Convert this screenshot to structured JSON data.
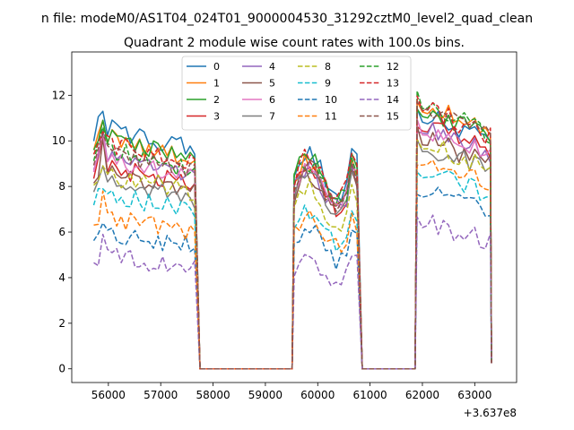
{
  "chart_data": {
    "type": "line",
    "suptitle": "n file: modeM0/AS1T04_024T01_9000004530_31292cztM0_level2_quad_clean",
    "title": "Quadrant 2 module wise count rates with 100.0s bins.",
    "xlabel": "",
    "ylabel": "",
    "x_offset_label": "+3.637e8",
    "xlim": [
      55300,
      63800
    ],
    "ylim": [
      -0.6,
      13.9
    ],
    "xticks": [
      56000,
      57000,
      58000,
      59000,
      60000,
      61000,
      62000,
      63000
    ],
    "xtick_labels": [
      "56000",
      "57000",
      "58000",
      "59000",
      "60000",
      "61000",
      "62000",
      "63000"
    ],
    "yticks": [
      0,
      2,
      4,
      6,
      8,
      10,
      12
    ],
    "ytick_labels": [
      "0",
      "2",
      "4",
      "6",
      "8",
      "10",
      "12"
    ],
    "grid": false,
    "legend_position": "upper-center",
    "legend_columns": 4,
    "gap_start": 57750,
    "segments": [
      [
        55720,
        57650,
        23
      ],
      [
        59550,
        60750,
        13
      ],
      [
        61900,
        63300,
        15
      ]
    ],
    "series": [
      {
        "name": "0",
        "color": "#1f77b4",
        "dash": "solid",
        "levels": [
          10.3,
          9.2,
          10.5
        ],
        "peak": 11.3
      },
      {
        "name": "1",
        "color": "#ff7f0e",
        "dash": "solid",
        "levels": [
          9.9,
          8.8,
          10.9
        ],
        "peak": 10.9
      },
      {
        "name": "2",
        "color": "#2ca02c",
        "dash": "solid",
        "levels": [
          9.9,
          9.0,
          10.7
        ],
        "peak": 10.9
      },
      {
        "name": "3",
        "color": "#d62728",
        "dash": "solid",
        "levels": [
          8.6,
          8.5,
          10.1
        ],
        "peak": 10.2
      },
      {
        "name": "4",
        "color": "#9467bd",
        "dash": "solid",
        "levels": [
          9.0,
          8.5,
          10.0
        ],
        "peak": 10.5
      },
      {
        "name": "5",
        "color": "#8c564b",
        "dash": "solid",
        "levels": [
          8.4,
          8.3,
          9.5
        ],
        "peak": 10.1
      },
      {
        "name": "6",
        "color": "#e377c2",
        "dash": "solid",
        "levels": [
          8.9,
          8.6,
          9.9
        ],
        "peak": 10.3
      },
      {
        "name": "7",
        "color": "#7f7f7f",
        "dash": "solid",
        "levels": [
          8.0,
          8.2,
          9.2
        ],
        "peak": 8.9
      },
      {
        "name": "8",
        "color": "#bcbd22",
        "dash": "dashed",
        "levels": [
          8.3,
          7.7,
          9.3
        ],
        "peak": 8.9
      },
      {
        "name": "9",
        "color": "#17becf",
        "dash": "dashed",
        "levels": [
          7.4,
          6.6,
          8.1
        ],
        "peak": 7.9
      },
      {
        "name": "10",
        "color": "#1f77b4",
        "dash": "dashed",
        "levels": [
          5.8,
          5.8,
          7.3
        ],
        "peak": 6.4
      },
      {
        "name": "11",
        "color": "#ff7f0e",
        "dash": "dashed",
        "levels": [
          6.5,
          6.5,
          8.6
        ],
        "peak": 7.8
      },
      {
        "name": "12",
        "color": "#2ca02c",
        "dash": "dashed",
        "levels": [
          9.4,
          8.8,
          10.9
        ],
        "peak": 10.6
      },
      {
        "name": "13",
        "color": "#d62728",
        "dash": "dashed",
        "levels": [
          9.7,
          9.0,
          10.8
        ],
        "peak": 10.4
      },
      {
        "name": "14",
        "color": "#9467bd",
        "dash": "dashed",
        "levels": [
          4.8,
          4.7,
          6.0
        ],
        "peak": 5.9
      },
      {
        "name": "15",
        "color": "#8c564b",
        "dash": "dashed",
        "levels": [
          9.2,
          8.6,
          10.8
        ],
        "peak": 10.3
      }
    ]
  }
}
